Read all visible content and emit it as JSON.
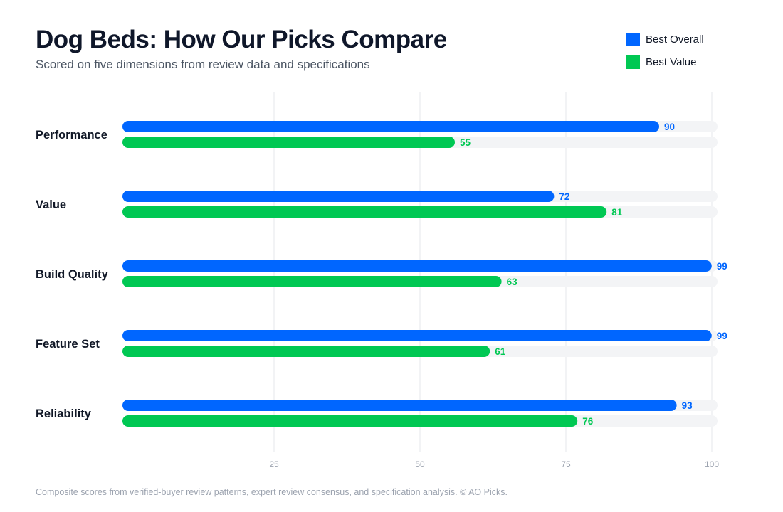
{
  "header": {
    "title": "Dog Beds: How Our Picks Compare",
    "subtitle": "Scored on five dimensions from review data and specifications"
  },
  "legend": {
    "placement": "top-right",
    "items": [
      {
        "label": "Best Overall",
        "color": "#0066ff"
      },
      {
        "label": "Best Value",
        "color": "#00c853"
      }
    ]
  },
  "chart_data": {
    "type": "bar",
    "orientation": "horizontal",
    "title": "Dog Beds: How Our Picks Compare",
    "subtitle": "Scored on five dimensions from review data and specifications",
    "categories": [
      "Performance",
      "Value",
      "Build Quality",
      "Feature Set",
      "Reliability"
    ],
    "series": [
      {
        "name": "Best Overall",
        "color": "#0066ff",
        "values": [
          90,
          72,
          99,
          99,
          93
        ]
      },
      {
        "name": "Best Value",
        "color": "#00c853",
        "values": [
          55,
          81,
          63,
          61,
          76
        ]
      }
    ],
    "xlim": [
      0,
      100
    ],
    "xticks": [
      25,
      50,
      75,
      100
    ],
    "grid": true,
    "track_color": "#f3f4f6",
    "grid_color": "#e5e7eb",
    "tick_color": "#9ca3af",
    "data_labels": true
  },
  "footer": {
    "note": "Composite scores from verified-buyer review patterns, expert review consensus, and specification analysis. © AO Picks."
  }
}
